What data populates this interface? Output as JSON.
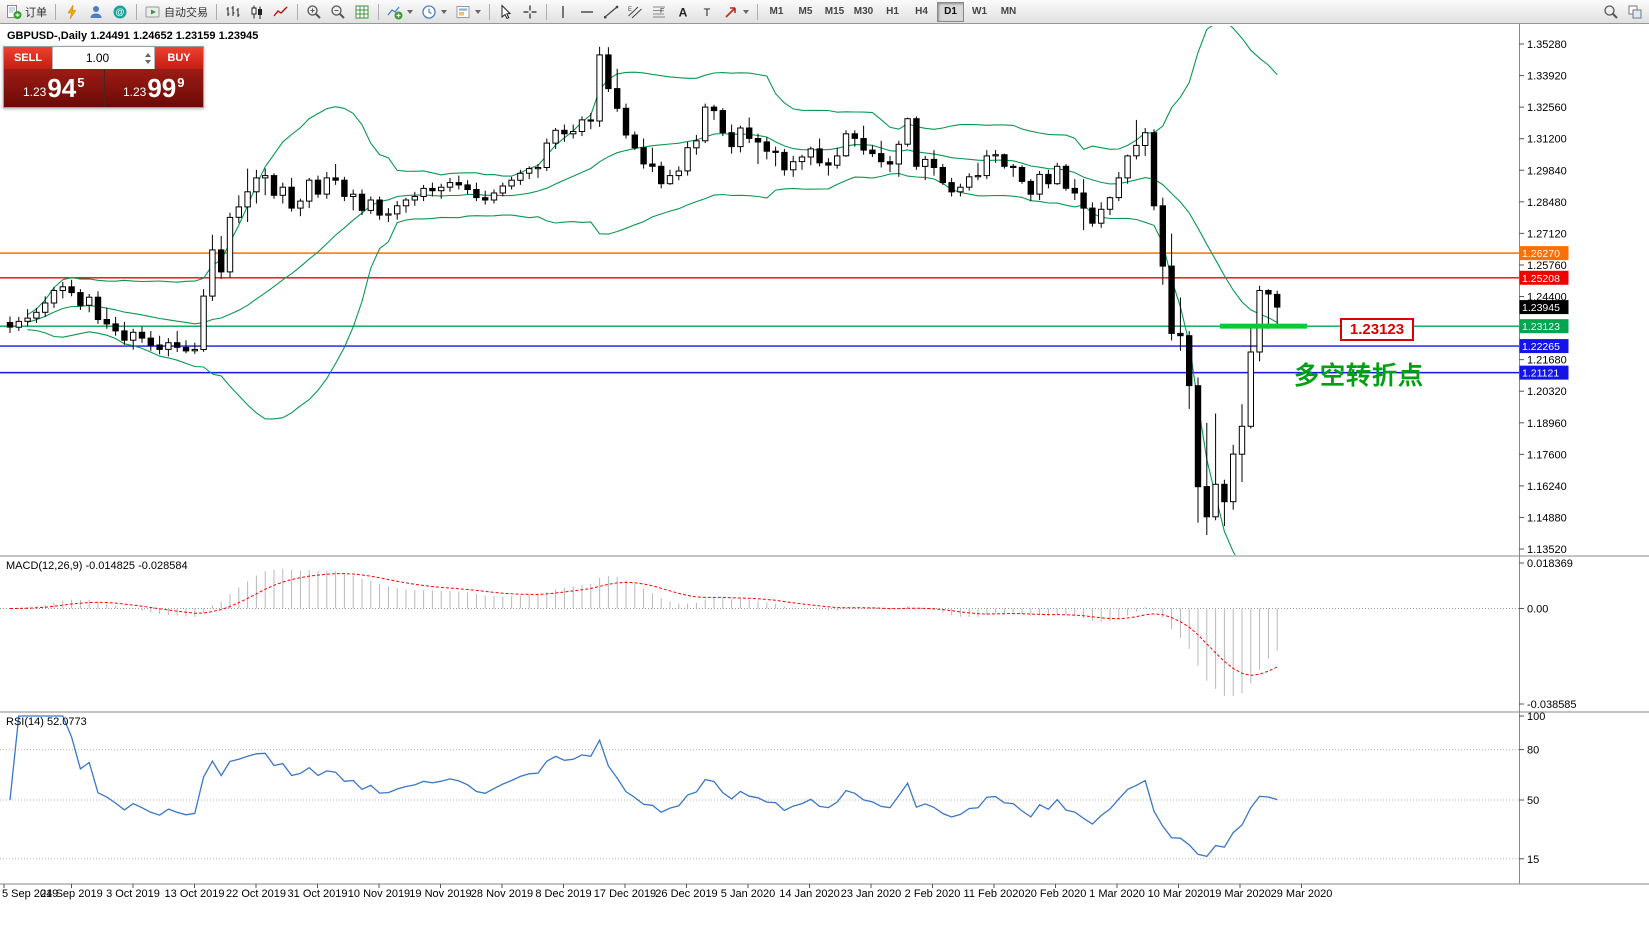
{
  "toolbar": {
    "new_order_label": "订单",
    "autotrade_label": "自动交易",
    "timeframes": [
      "M1",
      "M5",
      "M15",
      "M30",
      "H1",
      "H4",
      "D1",
      "W1",
      "MN"
    ],
    "active_timeframe": "D1",
    "items": [
      {
        "name": "new-order-button",
        "icon": "new-order-icon",
        "label_key": "new_order_label"
      },
      {
        "sep": true
      },
      {
        "name": "lightning-button",
        "icon": "lightning-icon"
      },
      {
        "name": "profile-button",
        "icon": "profile-icon"
      },
      {
        "name": "community-button",
        "icon": "community-icon"
      },
      {
        "sep": true
      },
      {
        "name": "autotrade-button",
        "icon": "autotrade-icon",
        "label_key": "autotrade_label"
      },
      {
        "sep": true
      },
      {
        "name": "bar-chart-button",
        "icon": "bar-chart-icon"
      },
      {
        "name": "candlestick-chart-button",
        "icon": "candlestick-chart-icon"
      },
      {
        "name": "line-chart-button",
        "icon": "line-chart-icon"
      },
      {
        "sep": true
      },
      {
        "name": "zoom-in-button",
        "icon": "zoom-in-icon"
      },
      {
        "name": "zoom-out-button",
        "icon": "zoom-out-icon"
      },
      {
        "name": "grid-button",
        "icon": "grid-icon"
      },
      {
        "sep": true
      },
      {
        "name": "indicators-button",
        "icon": "indicators-icon",
        "caret": true
      },
      {
        "name": "periods-button",
        "icon": "periods-icon",
        "caret": true
      },
      {
        "name": "templates-button",
        "icon": "templates-icon",
        "caret": true
      },
      {
        "sep": true
      },
      {
        "name": "cursor-button",
        "icon": "cursor-icon"
      },
      {
        "name": "crosshair-button",
        "icon": "crosshair-icon"
      },
      {
        "sep": true
      },
      {
        "name": "vertical-line-button",
        "icon": "vertical-line-icon"
      },
      {
        "name": "horizontal-line-button",
        "icon": "horizontal-line-icon"
      },
      {
        "name": "trendline-button",
        "icon": "trendline-icon"
      },
      {
        "name": "channel-button",
        "icon": "equidistant-channel-icon"
      },
      {
        "name": "fibonacci-button",
        "icon": "fibonacci-icon"
      },
      {
        "name": "text-button",
        "icon": "text-icon"
      },
      {
        "name": "label-button",
        "icon": "label-icon"
      },
      {
        "name": "arrows-button",
        "icon": "arrows-icon",
        "caret": true
      },
      {
        "sep": true
      },
      {
        "timeframes": true
      },
      {
        "spacer": true
      },
      {
        "name": "search-button",
        "icon": "search-icon"
      },
      {
        "name": "windows-button",
        "icon": "windows-icon"
      }
    ]
  },
  "chart": {
    "title": "GBPUSD-,Daily 1.24491 1.24652 1.23159 1.23945",
    "symbol": "GBPUSD-",
    "period": "Daily"
  },
  "one_click": {
    "sell_label": "SELL",
    "buy_label": "BUY",
    "volume": "1.00",
    "bid_small": "1.23",
    "bid_big": "94",
    "bid_sup": "5",
    "ask_small": "1.23",
    "ask_big": "99",
    "ask_sup": "9"
  },
  "indicators": {
    "macd_label": "MACD(12,26,9) -0.014825 -0.028584",
    "rsi_label": "RSI(14) 52.0773"
  },
  "annotation": {
    "text": "多空转折点",
    "boxed_price": "1.23123"
  },
  "chart_data": {
    "type": "candlestick",
    "symbol": "GBPUSD",
    "timeframe": "D1",
    "ohlc_current": {
      "open": 1.24491,
      "high": 1.24652,
      "low": 1.23159,
      "close": 1.23945
    },
    "price_range": [
      1.1368,
      1.3528
    ],
    "price_axis_ticks": [
      "1.35280",
      "1.33920",
      "1.32560",
      "1.31200",
      "1.29840",
      "1.28480",
      "1.27120",
      "1.25760",
      "1.24400",
      "1.23040",
      "1.21680",
      "1.20320",
      "1.18960",
      "1.17600",
      "1.16240",
      "1.14880",
      "1.13520"
    ],
    "dates": [
      "5 Sep 2019",
      "24 Sep 2019",
      "3 Oct 2019",
      "13 Oct 2019",
      "22 Oct 2019",
      "31 Oct 2019",
      "10 Nov 2019",
      "19 Nov 2019",
      "28 Nov 2019",
      "8 Dec 2019",
      "17 Dec 2019",
      "26 Dec 2019",
      "5 Jan 2020",
      "14 Jan 2020",
      "23 Jan 2020",
      "2 Feb 2020",
      "11 Feb 2020",
      "20 Feb 2020",
      "1 Mar 2020",
      "10 Mar 2020",
      "19 Mar 2020",
      "29 Mar 2020"
    ],
    "indicators": {
      "bollinger": {
        "period": 20,
        "deviation": 2,
        "color": "#089950"
      },
      "macd": {
        "fast": 12,
        "slow": 26,
        "signal": 9,
        "value": -0.014825,
        "signal_value": -0.028584
      },
      "rsi": {
        "period": 14,
        "value": 52.0773
      }
    },
    "macd_axis_ticks": [
      "0.018369",
      "0.00",
      "-0.038585"
    ],
    "macd_range": [
      -0.038585,
      0.018369
    ],
    "rsi_axis_ticks": [
      "100",
      "80",
      "50",
      "15"
    ],
    "rsi_levels": [
      80,
      50,
      15
    ],
    "levels": [
      {
        "price": "1.26270",
        "value": 1.2627,
        "color": "#FF7000"
      },
      {
        "price": "1.25208",
        "value": 1.25208,
        "color": "#F00000"
      },
      {
        "price": "1.23123",
        "value": 1.23123,
        "color": "#00A550"
      },
      {
        "price": "1.22265",
        "value": 1.22265,
        "color": "#1414E8"
      },
      {
        "price": "1.21121",
        "value": 1.21121,
        "color": "#1414E8"
      }
    ],
    "current_price": {
      "label": "1.23945",
      "value": 1.23945,
      "color": "#000000"
    },
    "highlight": {
      "price": 1.23123,
      "color": "#00CC33"
    },
    "candles": [
      [
        1.2328,
        1.2354,
        1.2283,
        1.2308
      ],
      [
        1.2308,
        1.2352,
        1.2292,
        1.2333
      ],
      [
        1.2333,
        1.2386,
        1.2312,
        1.2347
      ],
      [
        1.2347,
        1.2391,
        1.2326,
        1.2372
      ],
      [
        1.2372,
        1.2441,
        1.2352,
        1.2412
      ],
      [
        1.2412,
        1.2481,
        1.2391,
        1.2466
      ],
      [
        1.2466,
        1.2503,
        1.2432,
        1.2482
      ],
      [
        1.2482,
        1.2512,
        1.2441,
        1.2457
      ],
      [
        1.2457,
        1.2472,
        1.2382,
        1.2402
      ],
      [
        1.2402,
        1.2451,
        1.2372,
        1.2437
      ],
      [
        1.2437,
        1.2462,
        1.2322,
        1.2341
      ],
      [
        1.2341,
        1.2391,
        1.2301,
        1.2322
      ],
      [
        1.2322,
        1.2352,
        1.2271,
        1.2292
      ],
      [
        1.2292,
        1.2331,
        1.2232,
        1.2252
      ],
      [
        1.2252,
        1.2301,
        1.2211,
        1.2286
      ],
      [
        1.2286,
        1.2311,
        1.2241,
        1.2261
      ],
      [
        1.2261,
        1.2291,
        1.2206,
        1.2231
      ],
      [
        1.2231,
        1.2271,
        1.2191,
        1.2212
      ],
      [
        1.2212,
        1.2261,
        1.2182,
        1.2241
      ],
      [
        1.2241,
        1.2291,
        1.2201,
        1.2221
      ],
      [
        1.2221,
        1.2252,
        1.2196,
        1.2206
      ],
      [
        1.2206,
        1.2241,
        1.2193,
        1.2212
      ],
      [
        1.2212,
        1.2472,
        1.2202,
        1.2442
      ],
      [
        1.2442,
        1.2706,
        1.2421,
        1.2641
      ],
      [
        1.2641,
        1.2701,
        1.2516,
        1.2546
      ],
      [
        1.2546,
        1.2801,
        1.2521,
        1.2781
      ],
      [
        1.2781,
        1.2876,
        1.2756,
        1.2826
      ],
      [
        1.2826,
        1.2991,
        1.2761,
        1.2891
      ],
      [
        1.2891,
        1.2986,
        1.2841,
        1.2951
      ],
      [
        1.2951,
        1.2992,
        1.2876,
        1.2961
      ],
      [
        1.2961,
        1.2971,
        1.2861,
        1.2876
      ],
      [
        1.2876,
        1.2931,
        1.2841,
        1.2911
      ],
      [
        1.2911,
        1.2951,
        1.2806,
        1.2821
      ],
      [
        1.2821,
        1.2861,
        1.2786,
        1.2851
      ],
      [
        1.2851,
        1.2951,
        1.2821,
        1.2941
      ],
      [
        1.2941,
        1.2961,
        1.2866,
        1.2881
      ],
      [
        1.2881,
        1.2976,
        1.2861,
        1.2951
      ],
      [
        1.2951,
        1.3011,
        1.2921,
        1.2941
      ],
      [
        1.2941,
        1.2956,
        1.2851,
        1.2871
      ],
      [
        1.2871,
        1.2901,
        1.2811,
        1.2881
      ],
      [
        1.2881,
        1.2901,
        1.2791,
        1.2811
      ],
      [
        1.2811,
        1.2871,
        1.2796,
        1.2856
      ],
      [
        1.2856,
        1.2871,
        1.2771,
        1.2791
      ],
      [
        1.2791,
        1.2821,
        1.2761,
        1.2796
      ],
      [
        1.2796,
        1.2851,
        1.2771,
        1.2831
      ],
      [
        1.2831,
        1.2866,
        1.2801,
        1.2856
      ],
      [
        1.2856,
        1.2891,
        1.2831,
        1.2871
      ],
      [
        1.2871,
        1.2921,
        1.2851,
        1.2906
      ],
      [
        1.2906,
        1.2931,
        1.2871,
        1.2896
      ],
      [
        1.2896,
        1.2926,
        1.2861,
        1.2911
      ],
      [
        1.2911,
        1.2951,
        1.2891,
        1.2931
      ],
      [
        1.2931,
        1.2961,
        1.2901,
        1.2921
      ],
      [
        1.2921,
        1.2941,
        1.2881,
        1.2901
      ],
      [
        1.2901,
        1.2931,
        1.2851,
        1.2866
      ],
      [
        1.2866,
        1.2896,
        1.2836,
        1.2856
      ],
      [
        1.2856,
        1.2901,
        1.2841,
        1.2886
      ],
      [
        1.2886,
        1.2931,
        1.2871,
        1.2916
      ],
      [
        1.2916,
        1.2956,
        1.2901,
        1.2941
      ],
      [
        1.2941,
        1.2986,
        1.2921,
        1.2971
      ],
      [
        1.2971,
        1.3001,
        1.2946,
        1.2991
      ],
      [
        1.2991,
        1.3011,
        1.2951,
        1.2996
      ],
      [
        1.2996,
        1.3121,
        1.2981,
        1.3101
      ],
      [
        1.3101,
        1.3166,
        1.3076,
        1.3156
      ],
      [
        1.3156,
        1.3181,
        1.3106,
        1.3141
      ],
      [
        1.3141,
        1.3181,
        1.3121,
        1.3151
      ],
      [
        1.3151,
        1.3216,
        1.3131,
        1.3201
      ],
      [
        1.3201,
        1.3231,
        1.3161,
        1.3196
      ],
      [
        1.3196,
        1.3516,
        1.3171,
        1.3481
      ],
      [
        1.3481,
        1.3514,
        1.3321,
        1.3336
      ],
      [
        1.3336,
        1.3421,
        1.3236,
        1.3251
      ],
      [
        1.3251,
        1.3271,
        1.3121,
        1.3136
      ],
      [
        1.3136,
        1.3151,
        1.3071,
        1.3081
      ],
      [
        1.3081,
        1.3121,
        1.2991,
        1.3011
      ],
      [
        1.3011,
        1.3081,
        1.2976,
        1.3001
      ],
      [
        1.3001,
        1.3021,
        1.2906,
        1.2926
      ],
      [
        1.2926,
        1.2986,
        1.2921,
        1.2961
      ],
      [
        1.2961,
        1.3001,
        1.2941,
        1.2981
      ],
      [
        1.2981,
        1.3106,
        1.2961,
        1.3081
      ],
      [
        1.3081,
        1.3136,
        1.3051,
        1.3111
      ],
      [
        1.3111,
        1.3271,
        1.3101,
        1.3256
      ],
      [
        1.3256,
        1.3266,
        1.3201,
        1.3241
      ],
      [
        1.3241,
        1.3251,
        1.3131,
        1.3146
      ],
      [
        1.3146,
        1.3181,
        1.3056,
        1.3086
      ],
      [
        1.3086,
        1.3176,
        1.3061,
        1.3166
      ],
      [
        1.3166,
        1.3211,
        1.3101,
        1.3121
      ],
      [
        1.3121,
        1.3141,
        1.3011,
        1.3106
      ],
      [
        1.3106,
        1.3126,
        1.3031,
        1.3066
      ],
      [
        1.3066,
        1.3086,
        1.3001,
        1.3061
      ],
      [
        1.3061,
        1.3076,
        1.2961,
        1.2986
      ],
      [
        1.2986,
        1.3046,
        1.2956,
        1.3021
      ],
      [
        1.3021,
        1.3051,
        1.2986,
        1.3041
      ],
      [
        1.3041,
        1.3086,
        1.3006,
        1.3076
      ],
      [
        1.3076,
        1.3121,
        1.3001,
        1.3016
      ],
      [
        1.3016,
        1.3036,
        1.2961,
        1.3006
      ],
      [
        1.3006,
        1.3081,
        1.2991,
        1.3046
      ],
      [
        1.3046,
        1.3156,
        1.3041,
        1.3141
      ],
      [
        1.3141,
        1.3156,
        1.3086,
        1.3121
      ],
      [
        1.3121,
        1.3176,
        1.3051,
        1.3071
      ],
      [
        1.3071,
        1.3091,
        1.3041,
        1.3056
      ],
      [
        1.3056,
        1.3111,
        1.2996,
        1.3021
      ],
      [
        1.3021,
        1.3046,
        1.2976,
        1.3011
      ],
      [
        1.3011,
        1.3111,
        1.2956,
        1.3096
      ],
      [
        1.3096,
        1.3211,
        1.3086,
        1.3206
      ],
      [
        1.3206,
        1.3216,
        1.2986,
        1.3001
      ],
      [
        1.3001,
        1.3046,
        1.2941,
        1.3031
      ],
      [
        1.3031,
        1.3071,
        1.2961,
        1.2996
      ],
      [
        1.2996,
        1.3011,
        1.2921,
        1.2931
      ],
      [
        1.2931,
        1.2951,
        1.2871,
        1.2891
      ],
      [
        1.2891,
        1.2926,
        1.2871,
        1.2911
      ],
      [
        1.2911,
        1.2971,
        1.2896,
        1.2956
      ],
      [
        1.2956,
        1.3016,
        1.2941,
        1.2961
      ],
      [
        1.2961,
        1.3071,
        1.2946,
        1.3046
      ],
      [
        1.3046,
        1.3071,
        1.3016,
        1.3051
      ],
      [
        1.3051,
        1.3056,
        1.2991,
        1.3001
      ],
      [
        1.3001,
        1.3011,
        1.2956,
        1.2996
      ],
      [
        1.2996,
        1.3006,
        1.2926,
        1.2936
      ],
      [
        1.2936,
        1.2946,
        1.2851,
        1.2881
      ],
      [
        1.2881,
        1.2981,
        1.2856,
        1.2966
      ],
      [
        1.2966,
        1.2986,
        1.2906,
        1.2926
      ],
      [
        1.2926,
        1.3016,
        1.2921,
        1.3001
      ],
      [
        1.3001,
        1.3011,
        1.2896,
        1.2906
      ],
      [
        1.2906,
        1.2946,
        1.2856,
        1.2886
      ],
      [
        1.2886,
        1.2946,
        1.2726,
        1.2821
      ],
      [
        1.2821,
        1.2846,
        1.2741,
        1.2756
      ],
      [
        1.2756,
        1.2846,
        1.2736,
        1.2816
      ],
      [
        1.2816,
        1.2871,
        1.2791,
        1.2866
      ],
      [
        1.2866,
        1.2976,
        1.2851,
        1.2951
      ],
      [
        1.2951,
        1.3051,
        1.2926,
        1.3046
      ],
      [
        1.3046,
        1.3201,
        1.3031,
        1.3091
      ],
      [
        1.3091,
        1.3166,
        1.3046,
        1.3146
      ],
      [
        1.3146,
        1.3161,
        1.2811,
        1.2831
      ],
      [
        1.2831,
        1.2866,
        1.2491,
        1.2571
      ],
      [
        1.2571,
        1.2711,
        1.2251,
        1.2281
      ],
      [
        1.2281,
        1.2436,
        1.2206,
        1.2271
      ],
      [
        1.2271,
        1.2291,
        1.1956,
        1.2056
      ],
      [
        1.2056,
        1.2091,
        1.1466,
        1.1621
      ],
      [
        1.1621,
        1.1896,
        1.1412,
        1.1491
      ],
      [
        1.1491,
        1.1936,
        1.1476,
        1.1631
      ],
      [
        1.1631,
        1.1651,
        1.1451,
        1.1556
      ],
      [
        1.1556,
        1.1801,
        1.1521,
        1.1761
      ],
      [
        1.1761,
        1.1976,
        1.1641,
        1.1881
      ],
      [
        1.1881,
        1.2306,
        1.1871,
        1.2201
      ],
      [
        1.2201,
        1.2486,
        1.2161,
        1.2466
      ],
      [
        1.2466,
        1.2471,
        1.2301,
        1.2451
      ],
      [
        1.24491,
        1.24652,
        1.23159,
        1.23945
      ]
    ]
  }
}
